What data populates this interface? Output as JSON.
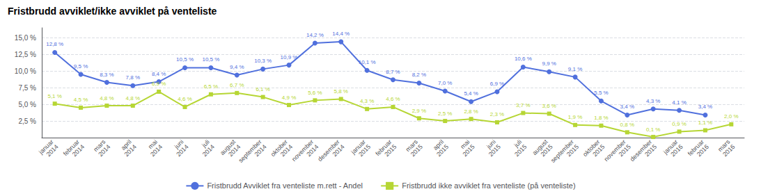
{
  "chart_data": {
    "type": "line",
    "title": "Fristbrudd avviklet/ikke avviklet på venteliste",
    "categories": [
      "januar\n2014",
      "februar\n2014",
      "mars\n2014",
      "april\n2014",
      "mai\n2014",
      "juni\n2014",
      "juli\n2014",
      "august\n2014",
      "september\n2014",
      "oktober\n2014",
      "november\n2014",
      "desember\n2014",
      "januar\n2015",
      "februar\n2015",
      "mars\n2015",
      "april\n2015",
      "mai\n2015",
      "juni\n2015",
      "juli\n2015",
      "august\n2015",
      "september\n2015",
      "oktober\n2015",
      "november\n2015",
      "desember\n2015",
      "januar\n2016",
      "februar\n2016",
      "mars\n2016"
    ],
    "series": [
      {
        "name": "Fristbrudd Avviklet fra venteliste m.rett - Andel",
        "marker": "circle",
        "values": [
          12.8,
          9.5,
          8.3,
          7.8,
          8.4,
          10.5,
          10.5,
          9.4,
          10.3,
          10.9,
          14.2,
          14.4,
          10.1,
          8.7,
          8.2,
          7.0,
          5.4,
          6.9,
          10.6,
          9.9,
          9.1,
          5.5,
          3.4,
          4.3,
          4.1,
          3.4,
          null
        ],
        "value_labels": [
          "12,8 %",
          "9,5 %",
          "8,3 %",
          "7,8 %",
          "8,4 %",
          "10,5 %",
          "10,5 %",
          "9,4 %",
          "10,3 %",
          "10,9 %",
          "14,2 %",
          "14,4 %",
          "10,1 %",
          "8,7 %",
          "8,2 %",
          "7,0 %",
          "5,4 %",
          "6,9 %",
          "10,6 %",
          "9,9 %",
          "9,1 %",
          "5,5 %",
          "3,4 %",
          "4,3 %",
          "4,1 %",
          "3,4 %",
          null
        ]
      },
      {
        "name": "Fristbrudd ikke avviklet fra venteliste (på venteliste)",
        "marker": "square",
        "values": [
          5.1,
          4.5,
          4.8,
          4.8,
          6.9,
          4.6,
          6.5,
          6.7,
          6.1,
          4.9,
          5.6,
          5.8,
          4.3,
          4.6,
          2.9,
          2.5,
          2.8,
          2.3,
          3.7,
          3.6,
          1.9,
          1.8,
          0.8,
          0.1,
          0.9,
          1.1,
          2.0
        ],
        "value_labels": [
          "5,1 %",
          "4,5 %",
          "4,8 %",
          "4,8 %",
          "6,9 %",
          "4,6 %",
          "6,5 %",
          "6,7 %",
          "6,1 %",
          "4,9 %",
          "5,6 %",
          "5,8 %",
          "4,3 %",
          "4,6 %",
          "2,9 %",
          "2,5 %",
          "2,8 %",
          "2,3 %",
          "3,7 %",
          "3,6 %",
          "1,9 %",
          "1,8 %",
          "0,8 %",
          "0,1 %",
          "0,9 %",
          "1,1 %",
          "2,0 %"
        ]
      }
    ],
    "ylim": [
      0,
      16.5
    ],
    "yticks": [
      {
        "value": 2.5,
        "label": "2,5 %"
      },
      {
        "value": 5.0,
        "label": "5,0 %"
      },
      {
        "value": 7.5,
        "label": "7,5 %"
      },
      {
        "value": 10.0,
        "label": "10,0 %"
      },
      {
        "value": 12.5,
        "label": "12,5 %"
      },
      {
        "value": 15.0,
        "label": "15,0 %"
      }
    ],
    "grid": true,
    "legend": "bottom",
    "data_labels": true
  }
}
